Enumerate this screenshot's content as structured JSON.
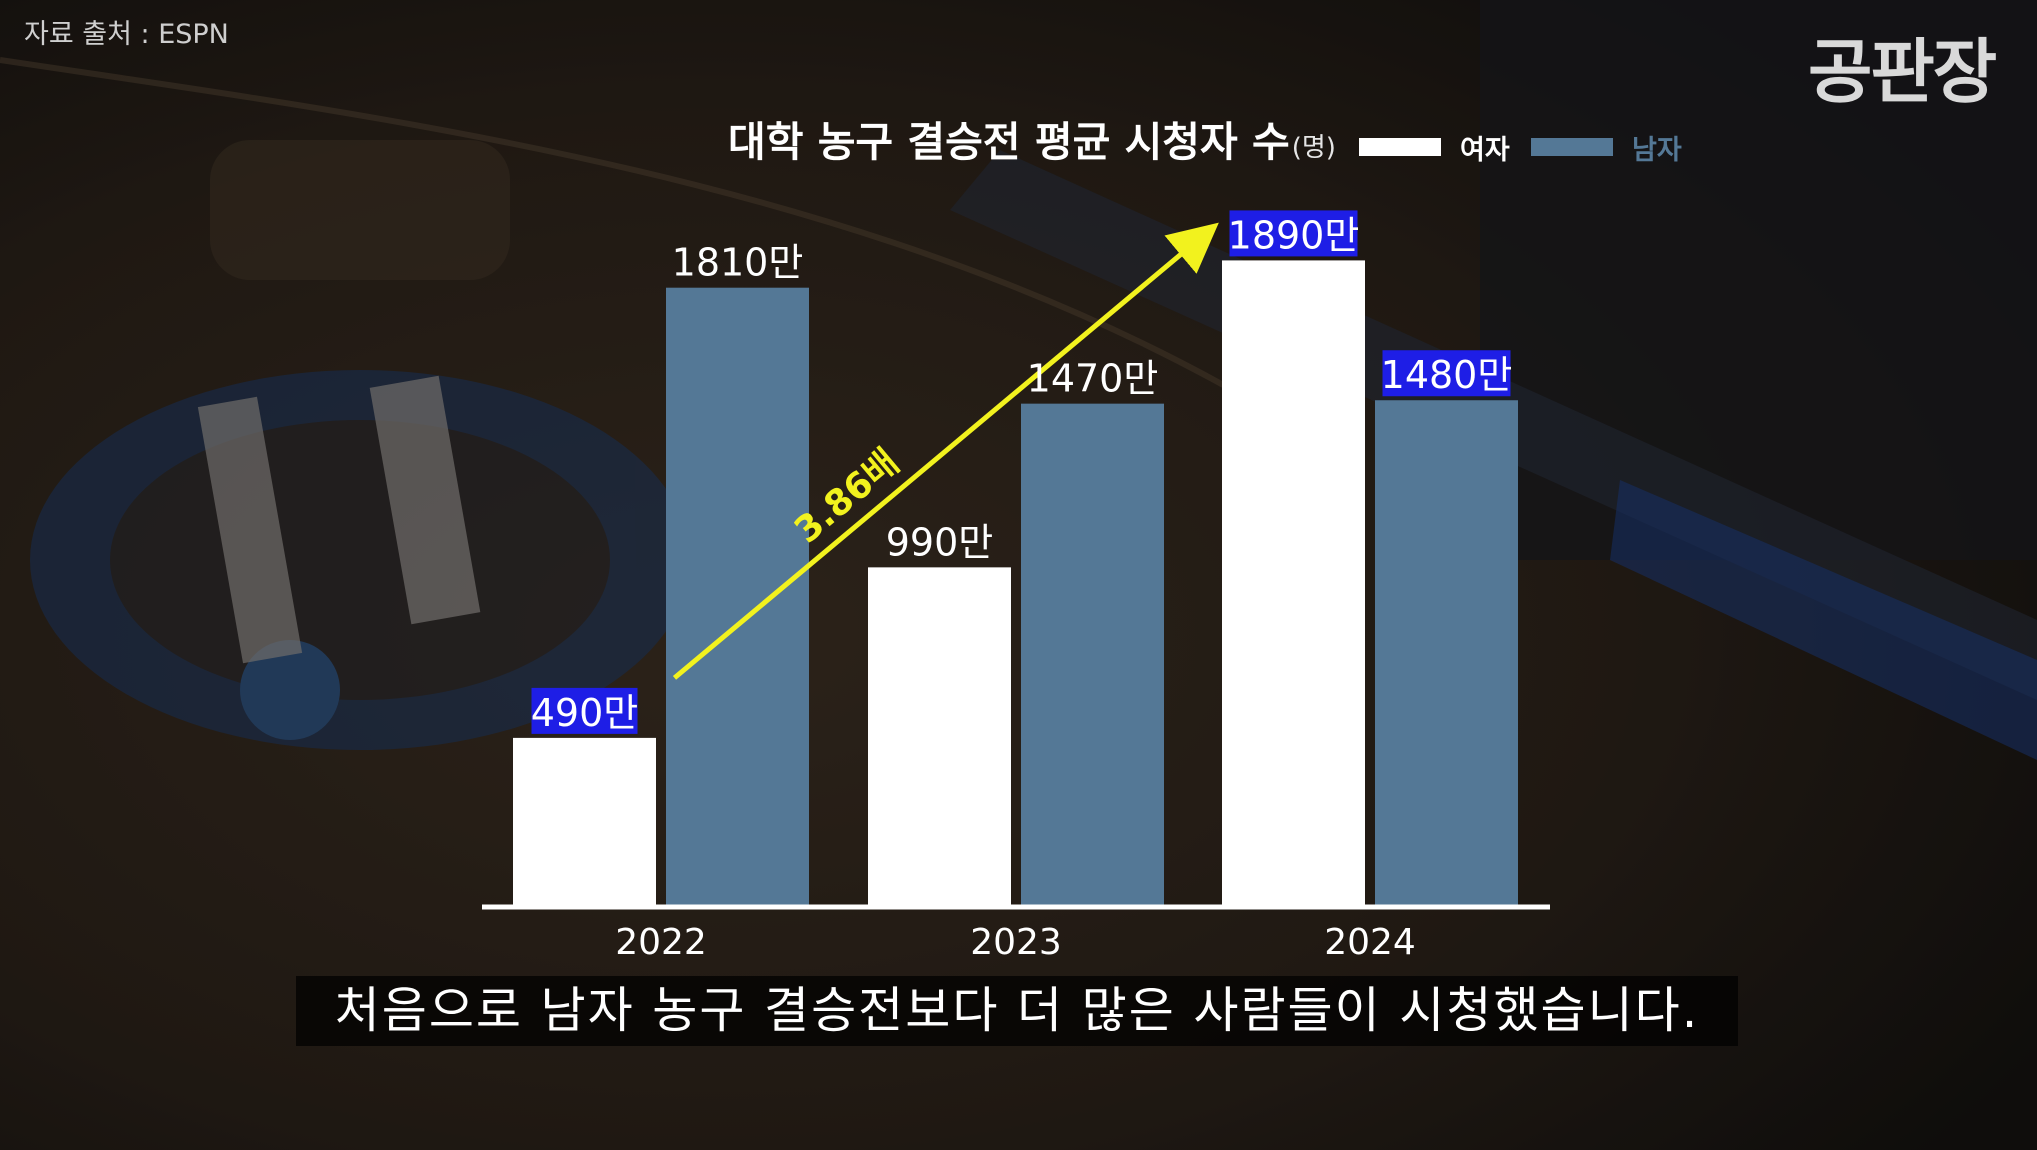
{
  "source_label": "자료 출처 : ESPN",
  "brand": "공판장",
  "subtitle": "처음으로 남자 농구 결승전보다 더 많은 사람들이 시청했습니다.",
  "chart_data": {
    "type": "bar",
    "title": "대학 농구 결승전 평균 시청자 수",
    "title_unit": "(명)",
    "categories": [
      "2022",
      "2023",
      "2024"
    ],
    "series": [
      {
        "name": "여자",
        "color": "#ffffff",
        "values": [
          490,
          990,
          1890
        ],
        "labels": [
          "490만",
          "990만",
          "1890만"
        ],
        "highlight": [
          true,
          false,
          true
        ]
      },
      {
        "name": "남자",
        "color": "#547896",
        "values": [
          1810,
          1470,
          1480
        ],
        "labels": [
          "1810만",
          "1470만",
          "1480만"
        ],
        "highlight": [
          false,
          false,
          true
        ]
      }
    ],
    "ylim": [
      0,
      1900
    ],
    "legend_position": "top-right",
    "highlight_color": "#1e1ee6",
    "annotation": {
      "text": "3.86배",
      "color": "#f2f21e",
      "from": {
        "category": "2022",
        "series": "여자"
      },
      "to": {
        "category": "2024",
        "series": "여자"
      }
    }
  }
}
